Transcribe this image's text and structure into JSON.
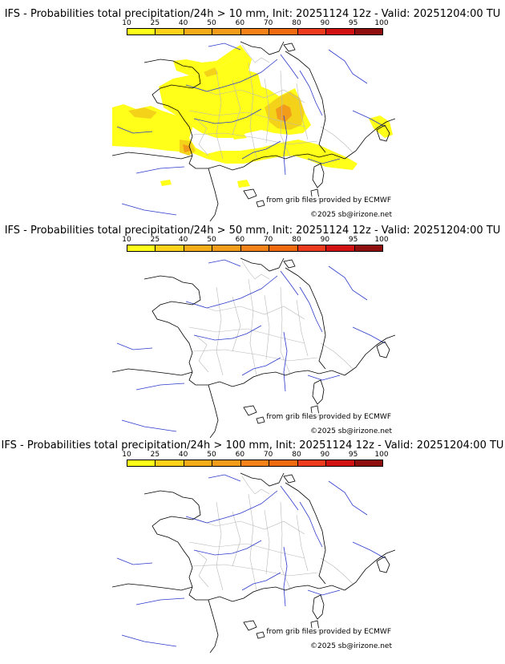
{
  "colorbar": {
    "ticks": [
      "10",
      "25",
      "40",
      "50",
      "60",
      "70",
      "80",
      "90",
      "95",
      "100"
    ],
    "colors": [
      "#ffff1a",
      "#ffd21a",
      "#f5ac19",
      "#f39c1a",
      "#f48219",
      "#f06a10",
      "#ee3b1d",
      "#d21212",
      "#8f0f0f"
    ]
  },
  "panels": [
    {
      "title": "IFS - Probabilities total precipitation/24h > 10 mm, Init: 20251124 12z - Valid: 20251204:00 TU",
      "credit_source": "from grib files provided by ECMWF",
      "credit_copyright": "©2025 sb@irizone.net"
    },
    {
      "title": "IFS - Probabilities total precipitation/24h > 50 mm, Init: 20251124 12z - Valid: 20251204:00 TU",
      "credit_source": "from grib files provided by ECMWF",
      "credit_copyright": "©2025 sb@irizone.net"
    },
    {
      "title": "IFS - Probabilities total precipitation/24h > 100 mm, Init: 20251124 12z - Valid: 20251204:00 TU",
      "credit_source": "from grib files provided by ECMWF",
      "credit_copyright": "©2025 sb@irizone.net"
    }
  ],
  "map_colors": {
    "coast": "#000000",
    "rivers": "#2a3acc",
    "regions": "#b8b8b8",
    "light": "#ffff1a",
    "mid": "#f5d21a",
    "strong": "#f39c1a"
  }
}
